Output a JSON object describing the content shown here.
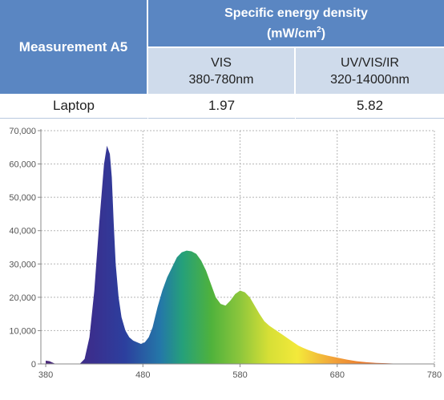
{
  "table": {
    "row_header": "Measurement A5",
    "group_header_line1": "Specific energy density",
    "group_header_unit_base": "(mW/cm",
    "group_header_unit_sup": "2",
    "group_header_unit_close": ")",
    "columns": [
      {
        "name": "VIS",
        "range": "380-780nm"
      },
      {
        "name": "UV/VIS/IR",
        "range": "320-14000nm"
      }
    ],
    "rows": [
      {
        "label": "Laptop",
        "values": [
          "1.97",
          "5.82"
        ]
      }
    ]
  },
  "chart_data": {
    "type": "area",
    "xlim": [
      375,
      780
    ],
    "ylim": [
      0,
      70000
    ],
    "xticks": [
      "380",
      "480",
      "580",
      "680",
      "780"
    ],
    "yticks": [
      "0",
      "10,000",
      "20,000",
      "30,000",
      "40,000",
      "50,000",
      "60,000",
      "70,000"
    ],
    "grid": true,
    "fill": "visible-spectrum gradient",
    "x": [
      380,
      384,
      390,
      400,
      410,
      415,
      420,
      425,
      430,
      435,
      440,
      443,
      446,
      448,
      450,
      452,
      455,
      458,
      462,
      466,
      470,
      474,
      478,
      482,
      486,
      490,
      495,
      500,
      505,
      510,
      515,
      520,
      525,
      530,
      535,
      540,
      545,
      550,
      555,
      560,
      565,
      570,
      575,
      580,
      585,
      590,
      595,
      600,
      605,
      610,
      615,
      620,
      625,
      630,
      635,
      640,
      645,
      650,
      660,
      670,
      680,
      690,
      700,
      710,
      720,
      730,
      740,
      750
    ],
    "y": [
      1000,
      800,
      0,
      0,
      0,
      0,
      1500,
      8000,
      22000,
      42000,
      60000,
      65500,
      63000,
      56000,
      42000,
      30000,
      20000,
      14000,
      10000,
      8000,
      7000,
      6500,
      6000,
      6500,
      8000,
      11000,
      17000,
      22000,
      26000,
      29000,
      32000,
      33500,
      34000,
      33800,
      33000,
      31000,
      28000,
      24000,
      20000,
      18000,
      17500,
      19000,
      21000,
      22000,
      21500,
      20000,
      17500,
      15000,
      12800,
      11500,
      10500,
      9500,
      8500,
      7500,
      6500,
      5500,
      4800,
      4200,
      3200,
      2500,
      1900,
      1300,
      800,
      500,
      300,
      200,
      100,
      0
    ]
  }
}
